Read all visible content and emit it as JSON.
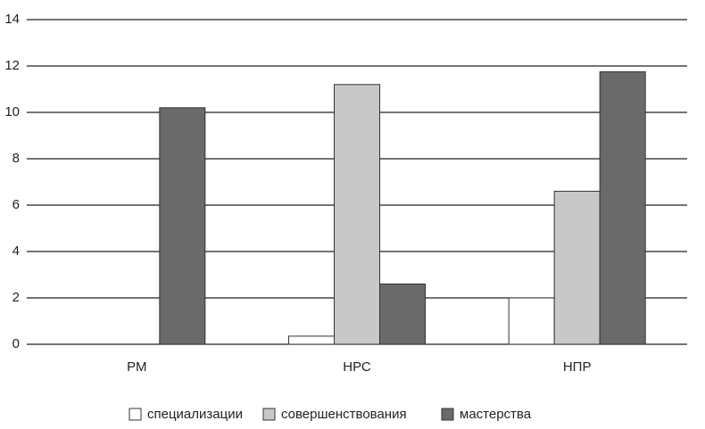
{
  "chart_data": {
    "type": "bar",
    "categories": [
      "РМ",
      "НРС",
      "НПР"
    ],
    "series": [
      {
        "name": "специализации",
        "color": "#ffffff",
        "values": [
          0,
          0.35,
          2.0
        ]
      },
      {
        "name": "совершенствования",
        "color": "#c8c8c8",
        "values": [
          0,
          11.2,
          6.6
        ]
      },
      {
        "name": "мастерства",
        "color": "#6a6a6a",
        "values": [
          10.2,
          2.6,
          11.75
        ]
      }
    ],
    "ylim": [
      0,
      14
    ],
    "yticks": [
      0,
      2,
      4,
      6,
      8,
      10,
      12,
      14
    ],
    "grid": true,
    "legend": "bottom"
  }
}
